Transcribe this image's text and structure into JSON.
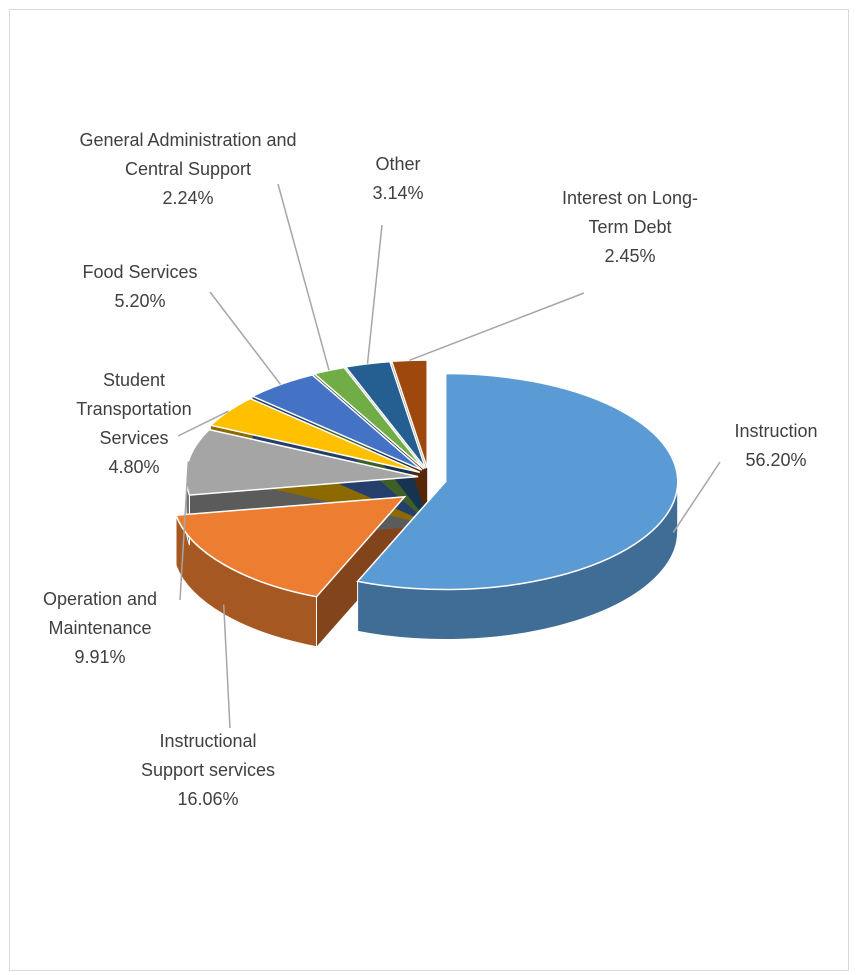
{
  "chart_data": {
    "type": "pie",
    "categories": [
      "Instruction",
      "Instructional Support services",
      "Operation and Maintenance",
      "Student Transportation Services",
      "Food Services",
      "General Administration and Central Support",
      "Other",
      "Interest on Long-Term Debt"
    ],
    "values": [
      56.2,
      16.06,
      9.91,
      4.8,
      5.2,
      2.24,
      3.14,
      2.45
    ],
    "value_labels": [
      "56.20%",
      "16.06%",
      "9.91%",
      "4.80%",
      "5.20%",
      "2.24%",
      "3.14%",
      "2.45%"
    ],
    "colors": [
      "#5b9bd5",
      "#ed7d31",
      "#a5a5a5",
      "#ffc000",
      "#4472c4",
      "#70ad47",
      "#255e91",
      "#9e480e"
    ]
  }
}
